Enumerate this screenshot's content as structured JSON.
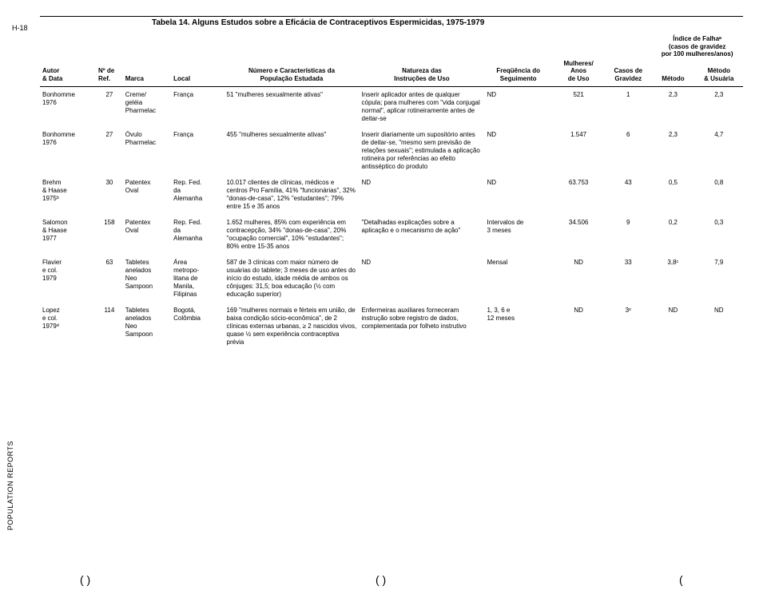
{
  "side_left": "H-18",
  "side_bottom": "POPULATION REPORTS",
  "title": "Tabela 14. Alguns Estudos sobre a Eficácia de Contraceptivos Espermicidas, 1975-1979",
  "headers": {
    "autor": "Autor\n& Data",
    "ref": "Nº de\nRef.",
    "marca": "Marca",
    "local": "Local",
    "pop": "Número e Características da\nPopulação Estudada",
    "nat": "Natureza das\nInstruções de Uso",
    "freq": "Freqüência do\nSeguimento",
    "mulheres_anos": "Mulheres/\nAnos\nde Uso",
    "casos": "Casos de\nGravidez",
    "indice_super": "Índice de Falhaᵃ\n(casos de gravidez\npor 100 mulheres/anos)",
    "metodo": "Método",
    "usuaria": "Método\n& Usuária"
  },
  "rows": [
    {
      "autor": "Bonhomme\n1976",
      "ref": "27",
      "marca": "Creme/\ngeléia\nPharmelac",
      "local": "França",
      "pop": "51 \"mulheres sexualmente ativas\"",
      "nat": "Inserir aplicador antes de qualquer cópula; para mulheres com \"vida conjugal normal\", aplicar rotineiramente antes de deitar-se",
      "freq": "ND",
      "anos": "521",
      "casos": "1",
      "metodo": "2,3",
      "usuaria": "2,3"
    },
    {
      "autor": "Bonhomme\n1976",
      "ref": "27",
      "marca": "Óvulo\nPharmelac",
      "local": "França",
      "pop": "455 \"mulheres sexualmente ativas\"",
      "nat": "Inserir diariamente um supositório antes de deitar-se, \"mesmo sem previsão de relações sexuais\"; estimulada a aplicação rotineira por referências ao efeito antisséptico do produto",
      "freq": "ND",
      "anos": "1.547",
      "casos": "6",
      "metodo": "2,3",
      "usuaria": "4,7"
    },
    {
      "autor": "Brehm\n& Haase\n1975ᵇ",
      "ref": "30",
      "marca": "Patentex\nOval",
      "local": "Rep. Fed.\nda\nAlemanha",
      "pop": "10.017 clientes de clínicas, médicos e centros Pro Família, 41% \"funcionárias\", 32% \"donas-de-casa\", 12% \"estudantes\"; 79% entre 15 e 35 anos",
      "nat": "ND",
      "freq": "ND",
      "anos": "63.753",
      "casos": "43",
      "metodo": "0,5",
      "usuaria": "0,8"
    },
    {
      "autor": "Salomon\n& Haase\n1977",
      "ref": "158",
      "marca": "Patentex\nOval",
      "local": "Rep. Fed.\nda\nAlemanha",
      "pop": "1.652 mulheres, 85% com experiência em contracepção, 34% \"donas-de-casa\", 20% \"ocupação comercial\", 10% \"estudantes\"; 80% entre 15-35 anos",
      "nat": "\"Detalhadas explicações sobre a aplicação e o mecanismo de ação\"",
      "freq": "Intervalos de\n3 meses",
      "anos": "34.506",
      "casos": "9",
      "metodo": "0,2",
      "usuaria": "0,3"
    },
    {
      "autor": "Flavier\ne col.\n1979",
      "ref": "63",
      "marca": "Tabletes\nanelados\nNeo\nSampoon",
      "local": "Área\nmetropo-\nlitana de\nManila,\nFilipinas",
      "pop": "587 de 3 clínicas com maior número de usuárias do tablete; 3 meses de uso antes do início do estudo, idade média de ambos os cônjuges: 31,5; boa educação (½ com educação superior)",
      "nat": "ND",
      "freq": "Mensal",
      "anos": "ND",
      "casos": "33",
      "metodo": "3,8ᶜ",
      "usuaria": "7,9"
    },
    {
      "autor": "Lopez\ne col.\n1979ᵈ",
      "ref": "114",
      "marca": "Tabletes\nanelados\nNeo\nSampoon",
      "local": "Bogotá,\nColômbia",
      "pop": "169 \"mulheres normais e férteis em união, de baixa condição sócio-econômica\", de 2 clínicas externas urbanas, ≥ 2 nascidos vivos, quase ½ sem experiência contraceptiva prévia",
      "nat": "Enfermeiras auxiliares forneceram instrução sobre registro de dados, complementada por folheto instrutivo",
      "freq": "1, 3, 6 e\n12 meses",
      "anos": "ND",
      "casos": "3ᵉ",
      "metodo": "ND",
      "usuaria": "ND"
    }
  ]
}
